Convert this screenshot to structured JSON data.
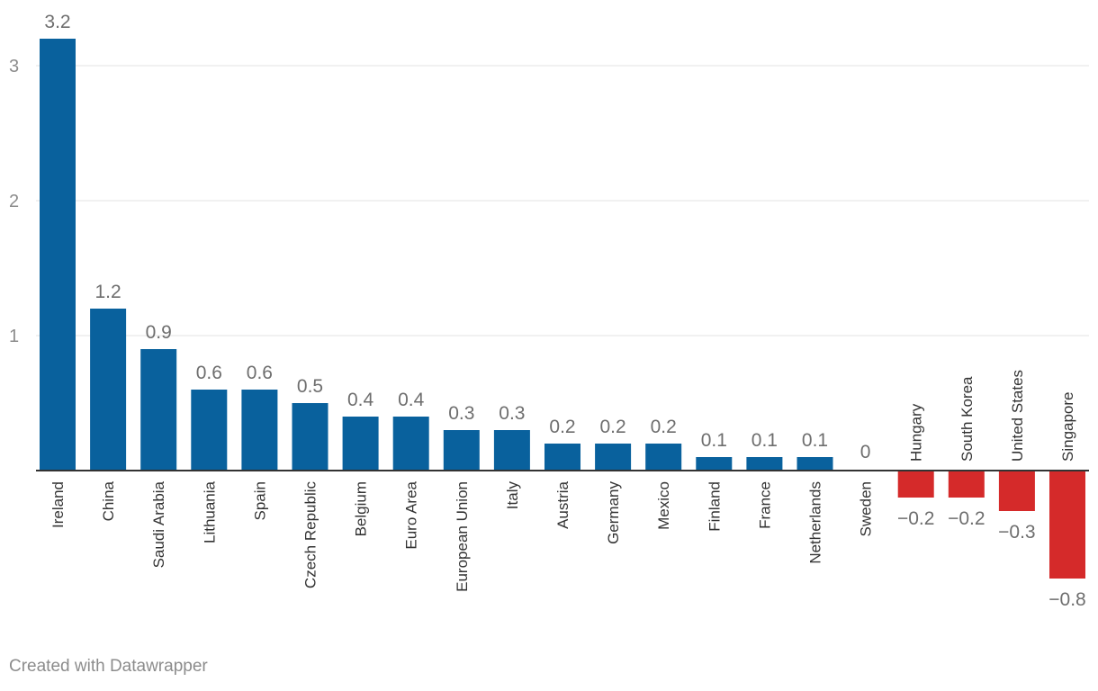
{
  "chart_data": {
    "type": "bar",
    "categories": [
      "Ireland",
      "China",
      "Saudi Arabia",
      "Lithuania",
      "Spain",
      "Czech Republic",
      "Belgium",
      "Euro Area",
      "European Union",
      "Italy",
      "Austria",
      "Germany",
      "Mexico",
      "Finland",
      "France",
      "Netherlands",
      "Sweden",
      "Hungary",
      "South Korea",
      "United States",
      "Singapore"
    ],
    "values": [
      3.2,
      1.2,
      0.9,
      0.6,
      0.6,
      0.5,
      0.4,
      0.4,
      0.3,
      0.3,
      0.2,
      0.2,
      0.2,
      0.1,
      0.1,
      0.1,
      0,
      -0.2,
      -0.2,
      -0.3,
      -0.8
    ],
    "value_labels": [
      "3.2",
      "1.2",
      "0.9",
      "0.6",
      "0.6",
      "0.5",
      "0.4",
      "0.4",
      "0.3",
      "0.3",
      "0.2",
      "0.2",
      "0.2",
      "0.1",
      "0.1",
      "0.1",
      "0",
      "−0.2",
      "−0.2",
      "−0.3",
      "−0.8"
    ],
    "y_ticks": [
      "1",
      "2",
      "3"
    ],
    "ylim": [
      -0.8,
      3.2
    ],
    "grid": true,
    "colors": {
      "positive": "#09619d",
      "negative": "#d52a2a"
    }
  },
  "credit": "Created with Datawrapper"
}
